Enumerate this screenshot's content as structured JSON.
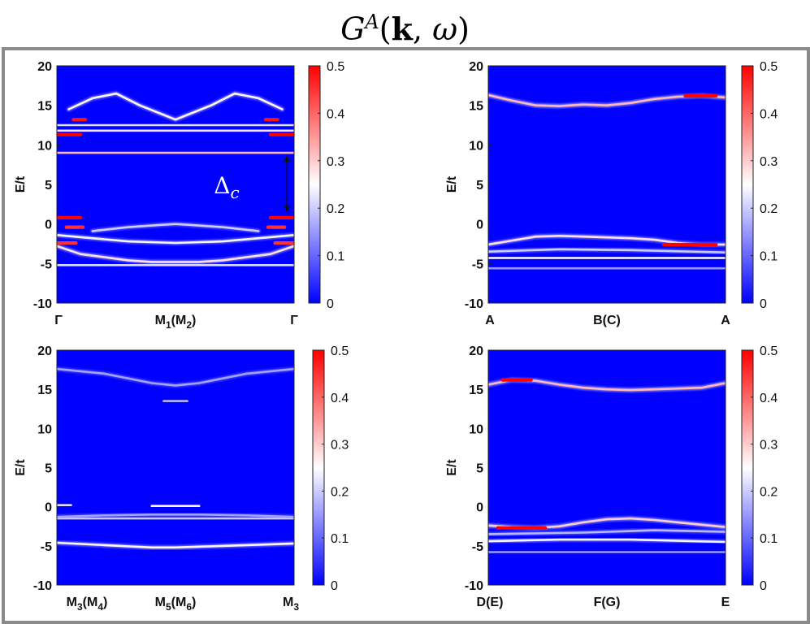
{
  "figure": {
    "title": "G^A(k, ω)",
    "colormap": [
      "#0000ff",
      "#ffffff",
      "#ff0000"
    ]
  },
  "chart_data": [
    {
      "type": "heatmap",
      "ylabel": "E/t",
      "ylim": [
        -10,
        20
      ],
      "yticks": [
        -10,
        -5,
        0,
        5,
        10,
        15,
        20
      ],
      "xtick_labels": [
        {
          "main": "Γ",
          "sub": ""
        },
        {
          "main": "M",
          "sub": "1",
          "paren": "M",
          "psub": "2"
        },
        {
          "main": "Γ",
          "sub": ""
        }
      ],
      "colorbar": {
        "range": [
          0,
          0.5
        ],
        "ticks": [
          0,
          0.1,
          0.2,
          0.3,
          0.4,
          0.5
        ]
      },
      "annotation": {
        "label": "Δ",
        "sub": "c",
        "from": 1.5,
        "to": 8.7,
        "x": 0.97
      },
      "bands": [
        {
          "x": [
            0,
            0.1,
            0.2,
            0.3,
            0.4,
            0.5,
            0.6,
            0.7,
            0.8,
            0.9,
            1
          ],
          "y": [
            -2.8,
            -3.8,
            -4.2,
            -4.6,
            -4.8,
            -4.8,
            -4.8,
            -4.6,
            -4.2,
            -3.8,
            -2.8
          ],
          "i": 0.28
        },
        {
          "x": [
            0,
            0.15,
            0.3,
            0.5,
            0.7,
            0.85,
            1
          ],
          "y": [
            -1.4,
            -1.8,
            -2.2,
            -2.4,
            -2.2,
            -1.8,
            -1.4
          ],
          "i": 0.24
        },
        {
          "x": [
            0,
            1
          ],
          "y": [
            -5.2,
            -5.2
          ],
          "i": 0.22
        },
        {
          "x": [
            0,
            1
          ],
          "y": [
            9.0,
            9.0
          ],
          "i": 0.32
        },
        {
          "x": [
            0,
            1
          ],
          "y": [
            11.8,
            11.8
          ],
          "i": 0.28
        },
        {
          "x": [
            0,
            1
          ],
          "y": [
            12.5,
            12.5
          ],
          "i": 0.22
        },
        {
          "x": [
            0.05,
            0.15,
            0.25,
            0.35,
            0.5,
            0.65,
            0.75,
            0.85,
            0.95
          ],
          "y": [
            14.5,
            15.9,
            16.5,
            15.0,
            13.2,
            15.0,
            16.5,
            15.9,
            14.5
          ],
          "i": 0.26
        },
        {
          "x": [
            0.15,
            0.3,
            0.45,
            0.5,
            0.55,
            0.7,
            0.85
          ],
          "y": [
            -0.9,
            -0.4,
            -0.1,
            0.0,
            -0.1,
            -0.4,
            -0.9
          ],
          "i": 0.2
        },
        {
          "x": [
            0,
            0.1
          ],
          "y": [
            11.3,
            11.3
          ],
          "i": 0.5
        },
        {
          "x": [
            0.9,
            1
          ],
          "y": [
            11.3,
            11.3
          ],
          "i": 0.5
        },
        {
          "x": [
            0.07,
            0.12
          ],
          "y": [
            13.2,
            13.2
          ],
          "i": 0.48
        },
        {
          "x": [
            0.88,
            0.93
          ],
          "y": [
            13.2,
            13.2
          ],
          "i": 0.48
        },
        {
          "x": [
            0,
            0.1
          ],
          "y": [
            0.8,
            0.8
          ],
          "i": 0.5
        },
        {
          "x": [
            0.9,
            1
          ],
          "y": [
            0.8,
            0.8
          ],
          "i": 0.5
        },
        {
          "x": [
            0.04,
            0.11
          ],
          "y": [
            -0.4,
            -0.4
          ],
          "i": 0.45
        },
        {
          "x": [
            0.89,
            0.96
          ],
          "y": [
            -0.4,
            -0.4
          ],
          "i": 0.45
        },
        {
          "x": [
            0,
            0.08
          ],
          "y": [
            -2.4,
            -2.4
          ],
          "i": 0.45
        },
        {
          "x": [
            0.92,
            1
          ],
          "y": [
            -2.4,
            -2.4
          ],
          "i": 0.45
        }
      ]
    },
    {
      "type": "heatmap",
      "ylabel": "E/t",
      "ylim": [
        -10,
        20
      ],
      "yticks": [
        -10,
        -5,
        0,
        5,
        10,
        15,
        20
      ],
      "xtick_labels": [
        {
          "main": "A",
          "sub": ""
        },
        {
          "main": "B(C)",
          "sub": ""
        },
        {
          "main": "A",
          "sub": ""
        }
      ],
      "colorbar": {
        "range": [
          0,
          0.5
        ],
        "ticks": [
          0,
          0.1,
          0.2,
          0.3,
          0.4,
          0.5
        ]
      },
      "bands": [
        {
          "x": [
            0,
            0.1,
            0.2,
            0.3,
            0.4,
            0.5,
            0.6,
            0.7,
            0.8,
            0.9,
            1
          ],
          "y": [
            16.3,
            15.6,
            15.0,
            14.9,
            15.1,
            15.0,
            15.3,
            15.8,
            16.1,
            16.2,
            16.0
          ],
          "i": 0.32
        },
        {
          "x": [
            0.83,
            0.96
          ],
          "y": [
            16.2,
            16.2
          ],
          "i": 0.5
        },
        {
          "x": [
            0,
            0.1,
            0.2,
            0.3,
            0.4,
            0.5,
            0.6,
            0.7,
            0.8,
            0.9,
            1
          ],
          "y": [
            -2.6,
            -2.1,
            -1.6,
            -1.5,
            -1.6,
            -1.7,
            -1.8,
            -2.0,
            -2.4,
            -2.6,
            -2.6
          ],
          "i": 0.28
        },
        {
          "x": [
            0.74,
            0.96
          ],
          "y": [
            -2.6,
            -2.6
          ],
          "i": 0.5
        },
        {
          "x": [
            0,
            1
          ],
          "y": [
            -4.3,
            -4.3
          ],
          "i": 0.25
        },
        {
          "x": [
            0,
            0.3,
            0.6,
            1
          ],
          "y": [
            -3.5,
            -3.2,
            -3.3,
            -3.6
          ],
          "i": 0.2
        },
        {
          "x": [
            0,
            1
          ],
          "y": [
            -5.6,
            -5.6
          ],
          "i": 0.15
        }
      ]
    },
    {
      "type": "heatmap",
      "ylabel": "E/t",
      "ylim": [
        -10,
        20
      ],
      "yticks": [
        -10,
        -5,
        0,
        5,
        10,
        15,
        20
      ],
      "xtick_labels": [
        {
          "main": "M",
          "sub": "3",
          "paren": "M",
          "psub": "4"
        },
        {
          "main": "M",
          "sub": "5",
          "paren": "M",
          "psub": "6"
        },
        {
          "main": "M",
          "sub": "3"
        }
      ],
      "colorbar": {
        "range": [
          0,
          0.5
        ],
        "ticks": [
          0,
          0.1,
          0.2,
          0.3,
          0.4,
          0.5
        ]
      },
      "bands": [
        {
          "x": [
            0,
            0.2,
            0.4,
            0.5,
            0.6,
            0.8,
            1
          ],
          "y": [
            -4.6,
            -4.9,
            -5.2,
            -5.2,
            -5.1,
            -4.9,
            -4.7
          ],
          "i": 0.26
        },
        {
          "x": [
            0,
            1
          ],
          "y": [
            -1.5,
            -1.5
          ],
          "i": 0.2
        },
        {
          "x": [
            0,
            0.2,
            0.4,
            0.6,
            0.8,
            1
          ],
          "y": [
            -1.3,
            -1.1,
            -1.0,
            -1.0,
            -1.1,
            -1.3
          ],
          "i": 0.16
        },
        {
          "x": [
            0.4,
            0.6
          ],
          "y": [
            0.1,
            0.1
          ],
          "i": 0.26
        },
        {
          "x": [
            0,
            0.06
          ],
          "y": [
            0.2,
            0.2
          ],
          "i": 0.22
        },
        {
          "x": [
            0,
            0.2,
            0.4,
            0.5,
            0.6,
            0.8,
            1
          ],
          "y": [
            17.6,
            17.0,
            15.8,
            15.5,
            15.8,
            17.0,
            17.6
          ],
          "i": 0.16
        },
        {
          "x": [
            0.45,
            0.55
          ],
          "y": [
            13.5,
            13.5
          ],
          "i": 0.18
        }
      ]
    },
    {
      "type": "heatmap",
      "ylabel": "E/t",
      "ylim": [
        -10,
        20
      ],
      "yticks": [
        -10,
        -5,
        0,
        5,
        10,
        15,
        20
      ],
      "xtick_labels": [
        {
          "main": "D(E)",
          "sub": ""
        },
        {
          "main": "F(G)",
          "sub": ""
        },
        {
          "main": "E",
          "sub": ""
        }
      ],
      "colorbar": {
        "range": [
          0,
          0.5
        ],
        "ticks": [
          0,
          0.1,
          0.2,
          0.3,
          0.4,
          0.5
        ]
      },
      "bands": [
        {
          "x": [
            0,
            0.1,
            0.2,
            0.3,
            0.4,
            0.5,
            0.6,
            0.7,
            0.8,
            0.9,
            1
          ],
          "y": [
            15.6,
            16.2,
            16.1,
            15.6,
            15.2,
            15.0,
            14.9,
            15.0,
            15.1,
            15.2,
            15.8
          ],
          "i": 0.32
        },
        {
          "x": [
            0.06,
            0.18
          ],
          "y": [
            16.2,
            16.2
          ],
          "i": 0.5
        },
        {
          "x": [
            0,
            0.1,
            0.2,
            0.3,
            0.4,
            0.5,
            0.6,
            0.7,
            0.8,
            0.9,
            1
          ],
          "y": [
            -2.4,
            -2.6,
            -2.7,
            -2.5,
            -2.0,
            -1.6,
            -1.5,
            -1.7,
            -2.0,
            -2.3,
            -2.6
          ],
          "i": 0.3
        },
        {
          "x": [
            0.04,
            0.24
          ],
          "y": [
            -2.7,
            -2.7
          ],
          "i": 0.5
        },
        {
          "x": [
            0,
            0.3,
            0.6,
            1
          ],
          "y": [
            -4.4,
            -4.2,
            -4.2,
            -4.5
          ],
          "i": 0.24
        },
        {
          "x": [
            0,
            0.4,
            0.7,
            1
          ],
          "y": [
            -3.5,
            -3.3,
            -3.0,
            -3.2
          ],
          "i": 0.18
        },
        {
          "x": [
            0,
            1
          ],
          "y": [
            -5.8,
            -5.8
          ],
          "i": 0.15
        }
      ]
    }
  ]
}
